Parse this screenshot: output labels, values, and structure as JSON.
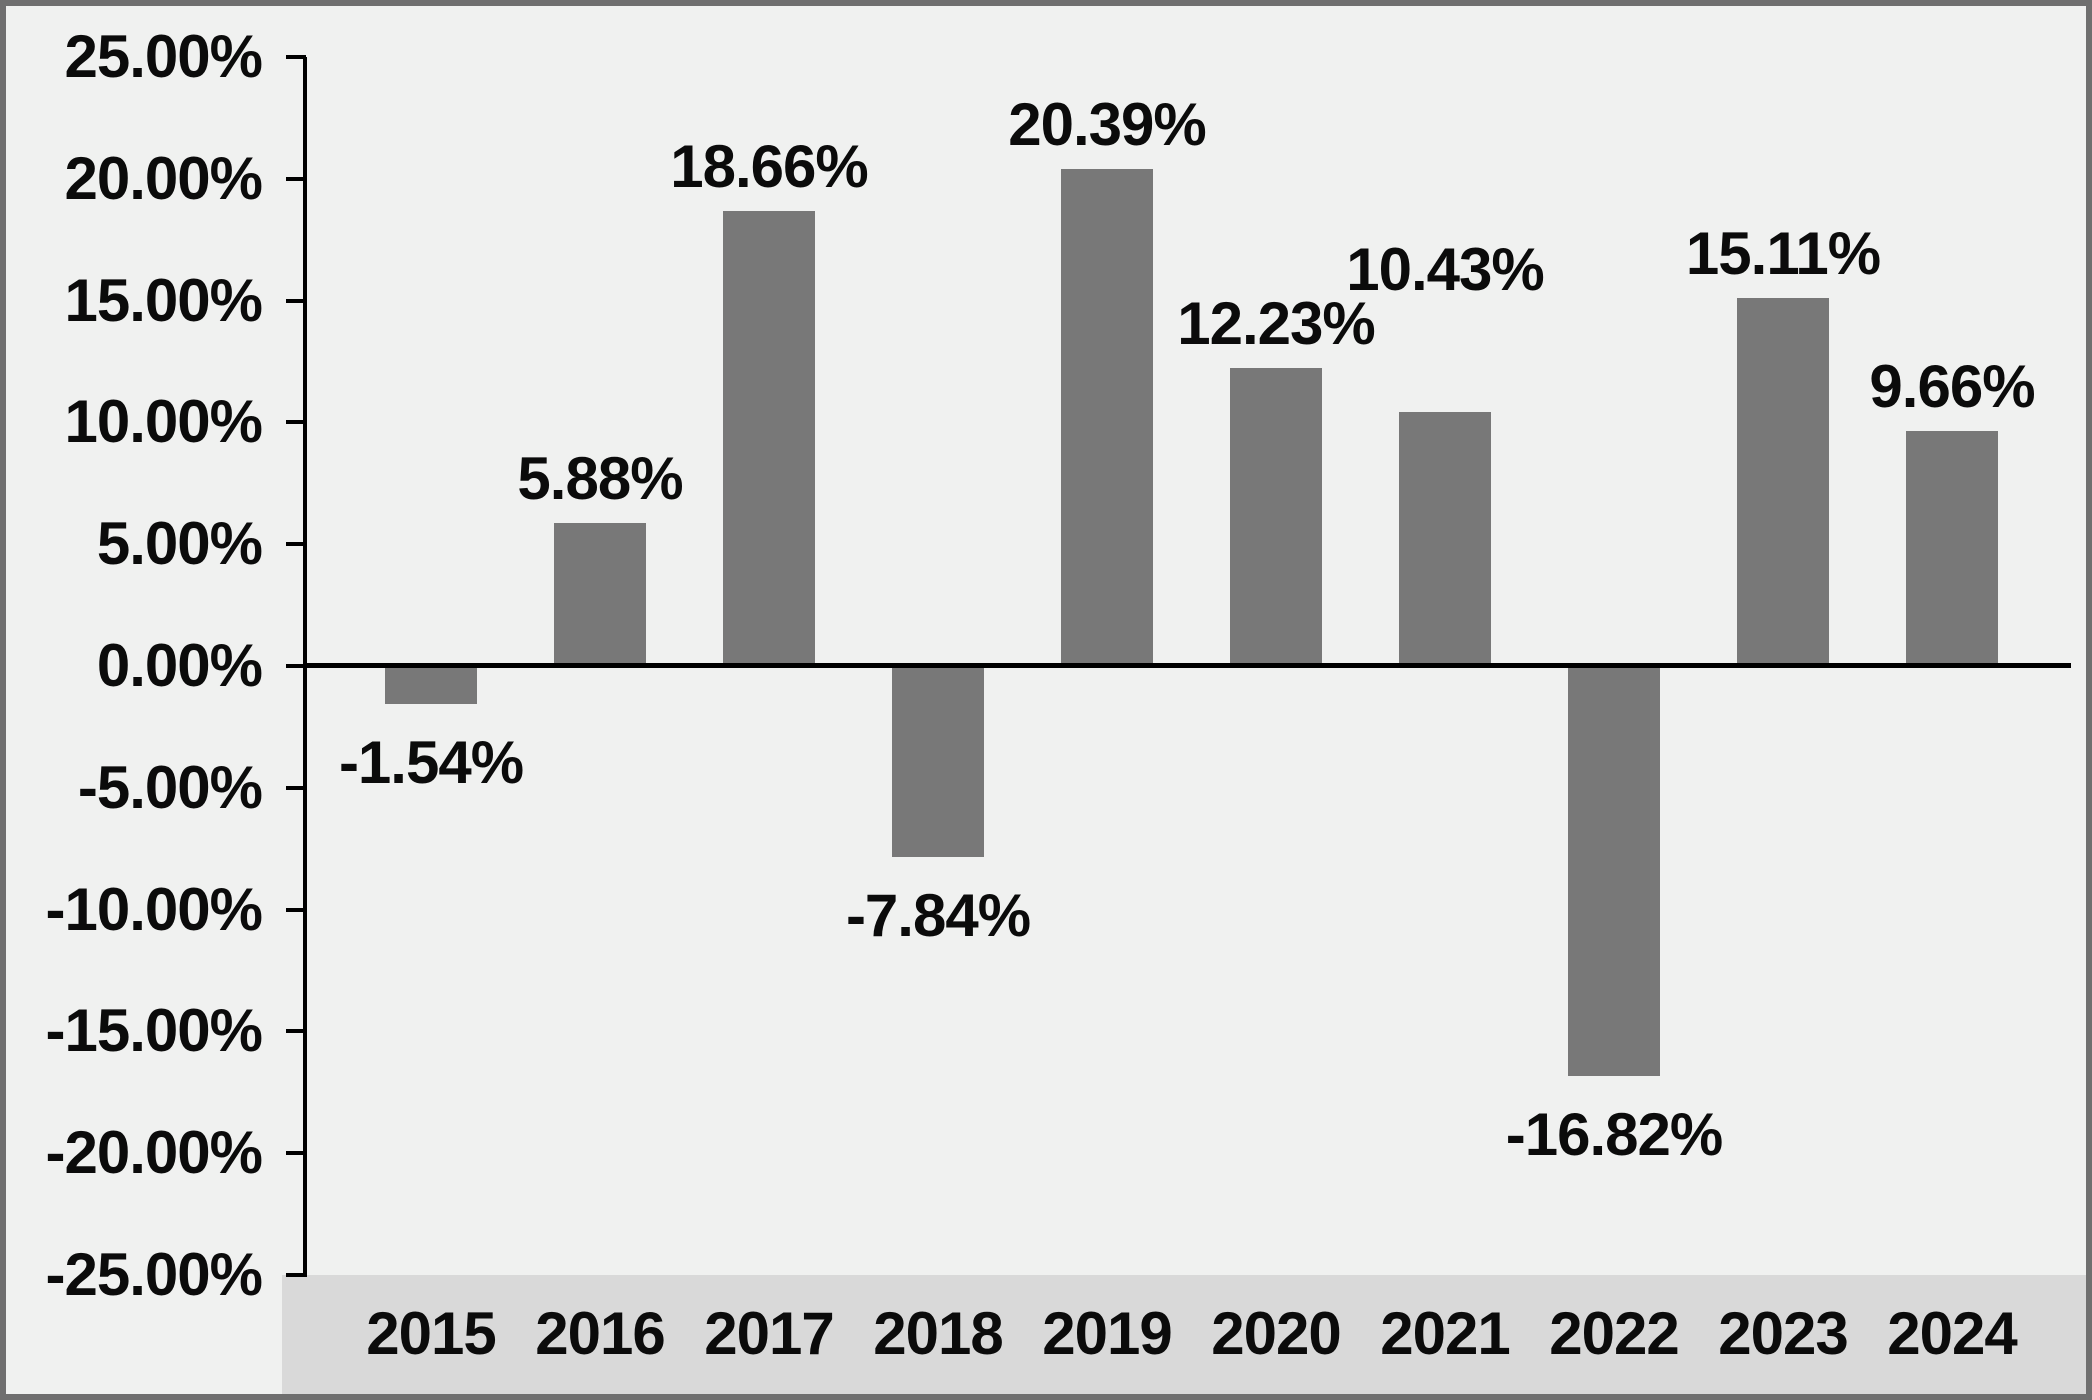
{
  "chart_data": {
    "type": "bar",
    "title": "",
    "xlabel": "",
    "ylabel": "",
    "categories": [
      "2015",
      "2016",
      "2017",
      "2018",
      "2019",
      "2020",
      "2021",
      "2022",
      "2023",
      "2024"
    ],
    "values": [
      -1.54,
      5.88,
      18.66,
      -7.84,
      20.39,
      12.23,
      10.43,
      -16.82,
      15.11,
      9.66
    ],
    "data_labels": [
      "-1.54%",
      "5.88%",
      "18.66%",
      "-7.84%",
      "20.39%",
      "12.23%",
      "10.43%",
      "-16.82%",
      "15.11%",
      "9.66%"
    ],
    "y_tick_labels": [
      "25.00%",
      "20.00%",
      "15.00%",
      "10.00%",
      "5.00%",
      "0.00%",
      "-5.00%",
      "-10.00%",
      "-15.00%",
      "-20.00%",
      "-25.00%"
    ],
    "y_tick_values": [
      25,
      20,
      15,
      10,
      5,
      0,
      -5,
      -10,
      -15,
      -20,
      -25
    ],
    "ylim": [
      -25,
      25
    ],
    "grid": false,
    "legend_position": "none",
    "bar_color": "#787878",
    "background_color": "#f0f1f0",
    "x_band_color": "#d9d9d9",
    "axis_color": "#000000",
    "label_dy_overrides": {
      "2021": -98
    }
  }
}
